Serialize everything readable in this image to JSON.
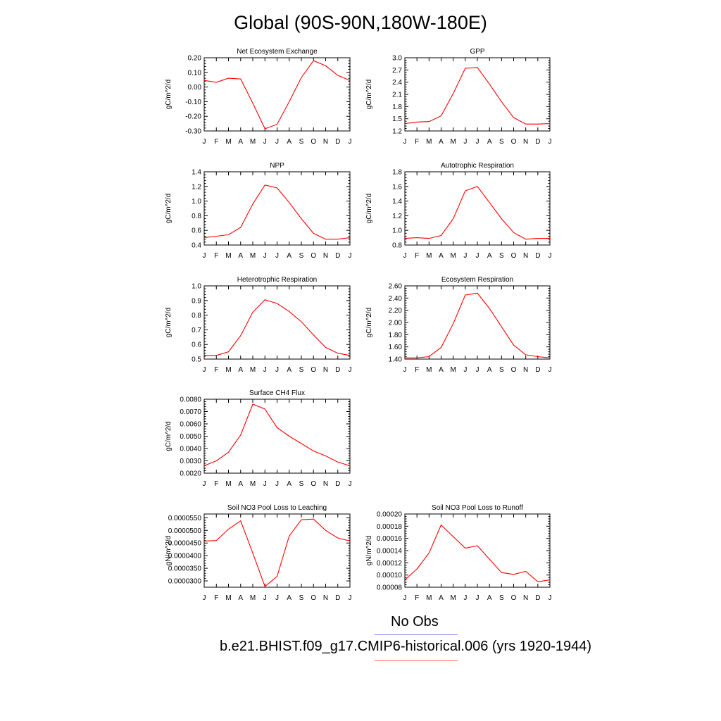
{
  "figure": {
    "title": "Global (90S-90N,180W-180E)",
    "legend": [
      {
        "label": "No Obs",
        "color": "#8a8ff0"
      },
      {
        "label": "b.e21.BHIST.f09_g17.CMIP6-historical.006 (yrs 1920-1944)",
        "color": "#ff6b6b"
      }
    ],
    "line_color": "#ff0000"
  },
  "chart_data": [
    {
      "type": "line",
      "title": "Net Ecosystem Exchange",
      "ylabel": "gC/m^2/d",
      "categories": [
        "J",
        "F",
        "M",
        "A",
        "M",
        "J",
        "J",
        "A",
        "S",
        "O",
        "N",
        "D",
        "J"
      ],
      "ylim": [
        -0.3,
        0.2
      ],
      "yticks": [
        -0.3,
        -0.2,
        -0.1,
        0.0,
        0.1,
        0.2
      ],
      "ytick_labels": [
        "-0.30",
        "-0.20",
        "-0.10",
        "0.00",
        "0.10",
        "0.20"
      ],
      "series": [
        {
          "values": [
            0.045,
            0.032,
            0.06,
            0.055,
            -0.11,
            -0.285,
            -0.255,
            -0.1,
            0.065,
            0.18,
            0.145,
            0.08,
            0.045
          ]
        }
      ]
    },
    {
      "type": "line",
      "title": "GPP",
      "ylabel": "gC/m^2/d",
      "categories": [
        "J",
        "F",
        "M",
        "A",
        "M",
        "J",
        "J",
        "A",
        "S",
        "O",
        "N",
        "D",
        "J"
      ],
      "ylim": [
        1.2,
        3.0
      ],
      "yticks": [
        1.2,
        1.5,
        1.8,
        2.1,
        2.4,
        2.7,
        3.0
      ],
      "ytick_labels": [
        "1.2",
        "1.5",
        "1.8",
        "2.1",
        "2.4",
        "2.7",
        "3.0"
      ],
      "series": [
        {
          "values": [
            1.38,
            1.42,
            1.43,
            1.57,
            2.12,
            2.74,
            2.76,
            2.35,
            1.92,
            1.53,
            1.37,
            1.37,
            1.38
          ]
        }
      ]
    },
    {
      "type": "line",
      "title": "NPP",
      "ylabel": "gC/m^2/d",
      "categories": [
        "J",
        "F",
        "M",
        "A",
        "M",
        "J",
        "J",
        "A",
        "S",
        "O",
        "N",
        "D",
        "J"
      ],
      "ylim": [
        0.4,
        1.4
      ],
      "yticks": [
        0.4,
        0.6,
        0.8,
        1.0,
        1.2,
        1.4
      ],
      "ytick_labels": [
        "0.4",
        "0.6",
        "0.8",
        "1.0",
        "1.2",
        "1.4"
      ],
      "series": [
        {
          "values": [
            0.5,
            0.52,
            0.54,
            0.64,
            0.96,
            1.22,
            1.18,
            0.98,
            0.76,
            0.56,
            0.48,
            0.48,
            0.5
          ]
        }
      ]
    },
    {
      "type": "line",
      "title": "Autotrophic Respiration",
      "ylabel": "gC/m^2/d",
      "categories": [
        "J",
        "F",
        "M",
        "A",
        "M",
        "J",
        "J",
        "A",
        "S",
        "O",
        "N",
        "D",
        "J"
      ],
      "ylim": [
        0.8,
        1.8
      ],
      "yticks": [
        0.8,
        1.0,
        1.2,
        1.4,
        1.6,
        1.8
      ],
      "ytick_labels": [
        "0.8",
        "1.0",
        "1.2",
        "1.4",
        "1.6",
        "1.8"
      ],
      "series": [
        {
          "values": [
            0.89,
            0.9,
            0.89,
            0.93,
            1.16,
            1.54,
            1.6,
            1.38,
            1.16,
            0.97,
            0.88,
            0.89,
            0.89
          ]
        }
      ]
    },
    {
      "type": "line",
      "title": "Heterotrophic Respiration",
      "ylabel": "gC/m^2/d",
      "categories": [
        "J",
        "F",
        "M",
        "A",
        "M",
        "J",
        "J",
        "A",
        "S",
        "O",
        "N",
        "D",
        "J"
      ],
      "ylim": [
        0.5,
        1.0
      ],
      "yticks": [
        0.5,
        0.6,
        0.7,
        0.8,
        0.9,
        1.0
      ],
      "ytick_labels": [
        "0.5",
        "0.6",
        "0.7",
        "0.8",
        "0.9",
        "1.0"
      ],
      "series": [
        {
          "values": [
            0.525,
            0.525,
            0.55,
            0.66,
            0.82,
            0.905,
            0.88,
            0.825,
            0.755,
            0.665,
            0.58,
            0.54,
            0.525
          ]
        }
      ]
    },
    {
      "type": "line",
      "title": "Ecosystem Respiration",
      "ylabel": "gC/m^2/d",
      "categories": [
        "J",
        "F",
        "M",
        "A",
        "M",
        "J",
        "J",
        "A",
        "S",
        "O",
        "N",
        "D",
        "J"
      ],
      "ylim": [
        1.4,
        2.6
      ],
      "yticks": [
        1.4,
        1.6,
        1.8,
        2.0,
        2.2,
        2.4,
        2.6
      ],
      "ytick_labels": [
        "1.40",
        "1.60",
        "1.80",
        "2.00",
        "2.20",
        "2.40",
        "2.60"
      ],
      "series": [
        {
          "values": [
            1.42,
            1.42,
            1.44,
            1.59,
            1.98,
            2.45,
            2.48,
            2.23,
            1.93,
            1.63,
            1.47,
            1.44,
            1.42
          ]
        }
      ]
    },
    {
      "type": "line",
      "title": "Surface CH4 Flux",
      "ylabel": "gC/m^2/d",
      "categories": [
        "J",
        "F",
        "M",
        "A",
        "M",
        "J",
        "J",
        "A",
        "S",
        "O",
        "N",
        "D",
        "J"
      ],
      "ylim": [
        0.002,
        0.008
      ],
      "yticks": [
        0.002,
        0.003,
        0.004,
        0.005,
        0.006,
        0.007,
        0.008
      ],
      "ytick_labels": [
        "0.0020",
        "0.0030",
        "0.0040",
        "0.0050",
        "0.0060",
        "0.0070",
        "0.0080"
      ],
      "series": [
        {
          "values": [
            0.0026,
            0.003,
            0.0037,
            0.0051,
            0.0076,
            0.0072,
            0.0057,
            0.005,
            0.0044,
            0.0038,
            0.0034,
            0.0029,
            0.0026
          ]
        }
      ]
    },
    {
      "type": "line",
      "title": "Soil NO3 Pool Loss to Leaching",
      "ylabel": "gN/m^2/d",
      "categories": [
        "J",
        "F",
        "M",
        "A",
        "M",
        "J",
        "J",
        "A",
        "S",
        "O",
        "N",
        "D",
        "J"
      ],
      "ylim": [
        2.75e-05,
        5.65e-05
      ],
      "yticks": [
        3e-05,
        3.5e-05,
        4e-05,
        4.5e-05,
        5e-05,
        5.5e-05
      ],
      "ytick_labels": [
        "0.0000300",
        "0.0000350",
        "0.0000400",
        "0.0000450",
        "0.0000500",
        "0.0000550"
      ],
      "series": [
        {
          "values": [
            4.58e-05,
            4.6e-05,
            5.05e-05,
            5.38e-05,
            4.1e-05,
            2.78e-05,
            3.18e-05,
            4.78e-05,
            5.42e-05,
            5.45e-05,
            5e-05,
            4.7e-05,
            4.58e-05
          ]
        }
      ]
    },
    {
      "type": "line",
      "title": "Soil NO3 Pool Loss to Runoff",
      "ylabel": "gN/m^2/d",
      "categories": [
        "J",
        "F",
        "M",
        "A",
        "M",
        "J",
        "J",
        "A",
        "S",
        "O",
        "N",
        "D",
        "J"
      ],
      "ylim": [
        8e-05,
        0.0002
      ],
      "yticks": [
        8e-05,
        0.0001,
        0.00012,
        0.00014,
        0.00016,
        0.00018,
        0.0002
      ],
      "ytick_labels": [
        "0.00008",
        "0.00010",
        "0.00012",
        "0.00014",
        "0.00016",
        "0.00018",
        "0.00020"
      ],
      "series": [
        {
          "values": [
            9.2e-05,
            0.00011,
            0.000136,
            0.000182,
            0.000163,
            0.000144,
            0.000148,
            0.000126,
            0.000104,
            0.000101,
            0.000106,
            8.9e-05,
            9.2e-05
          ]
        }
      ]
    }
  ]
}
